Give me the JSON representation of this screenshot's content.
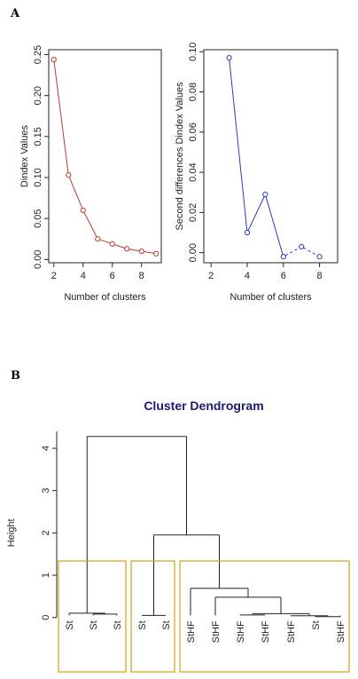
{
  "panel_labels": {
    "a": "A",
    "b": "B"
  },
  "chart_data": [
    {
      "type": "line",
      "panel": "A-left",
      "xlabel": "Number of clusters",
      "ylabel": "Dindex Values",
      "color": "#c0392b",
      "x": [
        2,
        3,
        4,
        5,
        6,
        7,
        8,
        9
      ],
      "y": [
        0.244,
        0.103,
        0.06,
        0.025,
        0.019,
        0.013,
        0.01,
        0.007
      ],
      "xlim": [
        1.65,
        9.35
      ],
      "ylim": [
        -0.004,
        0.256
      ],
      "xticks": [
        2,
        4,
        6,
        8
      ],
      "yticks": [
        0.0,
        0.05,
        0.1,
        0.15,
        0.2,
        0.25
      ],
      "ytick_labels": [
        "0.00",
        "0.05",
        "0.10",
        "0.15",
        "0.20",
        "0.25"
      ],
      "line_style": "solid-with-circles"
    },
    {
      "type": "line",
      "panel": "A-right",
      "xlabel": "Number of clusters",
      "ylabel": "Second differences Dindex Values",
      "color": "#2e3ab8",
      "x": [
        3,
        4,
        5,
        6,
        7,
        8
      ],
      "y": [
        0.097,
        0.01,
        0.029,
        -0.002,
        0.003,
        -0.002
      ],
      "segments": [
        {
          "from": 0,
          "to": 1,
          "dashed": false
        },
        {
          "from": 1,
          "to": 2,
          "dashed": false
        },
        {
          "from": 2,
          "to": 3,
          "dashed": false
        },
        {
          "from": 3,
          "to": 4,
          "dashed": true
        },
        {
          "from": 4,
          "to": 5,
          "dashed": true
        }
      ],
      "xlim": [
        1.6,
        9.0
      ],
      "ylim": [
        -0.005,
        0.101
      ],
      "xticks": [
        2,
        4,
        6,
        8
      ],
      "yticks": [
        0.0,
        0.02,
        0.04,
        0.06,
        0.08,
        0.1
      ],
      "ytick_labels": [
        "0.00",
        "0.02",
        "0.04",
        "0.06",
        "0.08",
        "0.10"
      ]
    },
    {
      "type": "dendrogram",
      "panel": "B",
      "title": "Cluster Dendrogram",
      "ylabel": "Height",
      "ylim": [
        -0.3,
        4.4
      ],
      "yticks": [
        0,
        1,
        2,
        3,
        4
      ],
      "box_color": "#d4a017",
      "leaves": [
        "St",
        "St",
        "St",
        "St",
        "St",
        "StHF",
        "StHF",
        "StHF",
        "StHF",
        "StHF",
        "St",
        "StHF"
      ],
      "leaf_heights": [
        0.05,
        0.05,
        0.05,
        0.05,
        0.05,
        0.05,
        0.05,
        0.05,
        0.05,
        0.05,
        0.05,
        0.05
      ],
      "merges": [
        {
          "left": "L1",
          "right": "L2",
          "height": 0.08
        },
        {
          "left": "L0",
          "right": "M0",
          "height": 0.1
        },
        {
          "left": "L3",
          "right": "L4",
          "height": 0.05
        },
        {
          "left": "L10",
          "right": "L11",
          "height": 0.02
        },
        {
          "left": "L9",
          "right": "M3",
          "height": 0.04
        },
        {
          "left": "L7",
          "right": "L8",
          "height": 0.06
        },
        {
          "left": "M5",
          "right": "M4",
          "height": 0.09
        },
        {
          "left": "L6",
          "right": "M6",
          "height": 0.48
        },
        {
          "left": "L5",
          "right": "M7",
          "height": 0.69
        },
        {
          "left": "M2",
          "right": "M8",
          "height": 1.95
        },
        {
          "left": "M1",
          "right": "M9",
          "height": 4.28
        }
      ],
      "boxes": [
        {
          "first_leaf": 0,
          "last_leaf": 2
        },
        {
          "first_leaf": 3,
          "last_leaf": 4
        },
        {
          "first_leaf": 5,
          "last_leaf": 11
        }
      ]
    }
  ]
}
